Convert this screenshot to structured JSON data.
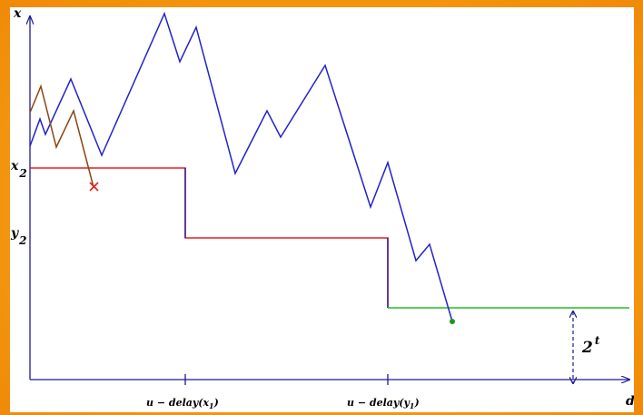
{
  "axes": {
    "y_label": "x",
    "x_label": "d"
  },
  "y_ticks": [
    {
      "base": "x",
      "sub": "2"
    },
    {
      "base": "y",
      "sub": "2"
    }
  ],
  "x_ticks": [
    {
      "text": "u − delay(x",
      "sub": "1",
      "close": ")"
    },
    {
      "text": "u − delay(y",
      "sub": "1",
      "close": ")"
    }
  ],
  "gap_label": {
    "base": "2",
    "sup": "t"
  },
  "colors": {
    "axis": "#1a1a9a",
    "path_main": "#2222cc",
    "path_brown": "#8b4513",
    "boundary_red": "#e02020",
    "boundary_green": "#20c020",
    "end_dot": "#1a9a1a",
    "cross_mark": "#e02020"
  },
  "markers": {
    "failed_end": "cross",
    "success_end": "dot"
  }
}
